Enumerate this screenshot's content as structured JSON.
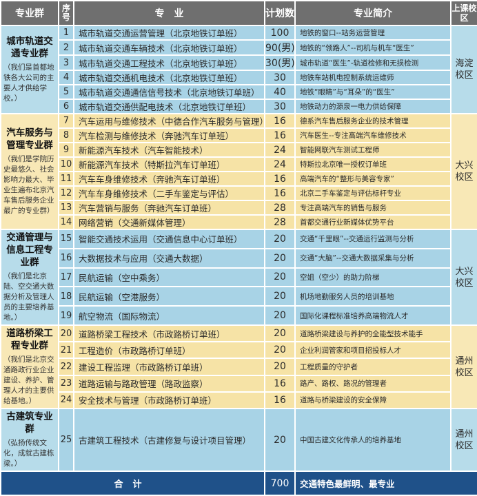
{
  "header": {
    "group": "专业群",
    "seq": "序号",
    "major": "专　业",
    "plan": "计划数",
    "intro": "专业简介",
    "campus": "上课校区"
  },
  "colors": {
    "header": "#6f6f6f",
    "blue": "#a8d3e6",
    "yellow": "#f6e3a6",
    "total": "#1f5189"
  },
  "groups": [
    {
      "title": "城市轨道交通专业群",
      "desc": "（我们是首都地铁各大公司的主要人才供给学校。）",
      "campus": "海淀校区",
      "color": "blue",
      "rowh": 21,
      "rows": [
        {
          "seq": "1",
          "major": "城市轨道交通运营管理（北京地铁订单班）",
          "plan": "100",
          "intro": "地铁的窗口--站务运营管理"
        },
        {
          "seq": "2",
          "major": "城市轨道交通车辆技术（北京地铁订单班）",
          "plan": "90(男)",
          "intro": "地铁的“领路人”--司机与机车“医生”"
        },
        {
          "seq": "3",
          "major": "城市轨道交通工程技术（北京地铁订单班）",
          "plan": "30(男)",
          "intro": "城市轨道“医生”-轨道检修和无损检测"
        },
        {
          "seq": "4",
          "major": "城市轨道交通机电技术（北京地铁订单班）",
          "plan": "30",
          "intro": "地铁车站机电控制系统运维师"
        },
        {
          "seq": "5",
          "major": "城市轨道交通通信信号技术（北京地铁订单班）",
          "plan": "40",
          "intro": "地铁“眼睛”与“耳朵”的“医生”"
        },
        {
          "seq": "6",
          "major": "城市轨道交通供配电技术（北京地铁订单班）",
          "plan": "30",
          "intro": "地铁动力的源泉一电力供给保障"
        }
      ]
    },
    {
      "title": "汽车服务与管理专业群",
      "desc": "（我们是学院历史最悠久、社会影响力最大、毕业生遍布北京汽车售后服务企业最广的专业群）",
      "campus": "大兴校区",
      "color": "yellow",
      "rowh": 21,
      "rows": [
        {
          "seq": "7",
          "major": "汽车运用与维修技术（中德合作汽车服务与管理）",
          "plan": "16",
          "intro": "德系汽车售后服务企业的技术管理"
        },
        {
          "seq": "8",
          "major": "汽车检测与维修技术（奔驰汽车订单班）",
          "plan": "16",
          "intro": "汽车医生--专注高端汽车维修技术"
        },
        {
          "seq": "9",
          "major": "新能源汽车技术（汽车智能技术）",
          "plan": "24",
          "intro": "智能网联汽车测试工程师"
        },
        {
          "seq": "10",
          "major": "新能源汽车技术（特斯拉汽车订单班）",
          "plan": "24",
          "intro": "特斯拉北京唯一授权订单班"
        },
        {
          "seq": "11",
          "major": "汽车车身维修技术（奔驰汽车订单班）",
          "plan": "16",
          "intro": "高端汽车的“整形与美容专家”"
        },
        {
          "seq": "12",
          "major": "汽车车身维修技术（二手车鉴定与评估）",
          "plan": "16",
          "intro": "北京二手车鉴定与评估标杆专业"
        },
        {
          "seq": "13",
          "major": "汽车营销与服务（奔驰汽车订单班）",
          "plan": "28",
          "intro": "专注高端汽车的销售与服务"
        },
        {
          "seq": "14",
          "major": "网络营销（交通新媒体管理）",
          "plan": "28",
          "intro": "首都交通行业新媒体优势平台"
        }
      ]
    },
    {
      "title": "交通管理与信息工程专业群",
      "desc": "（我们是北京陆、空交通大数据分析及管理人员的主要培养基地。）",
      "campus": "大兴校区",
      "color": "blue",
      "rowh": 22,
      "rows": [
        {
          "seq": "15",
          "major": "智能交通技术运用（交通信息中心订单班）",
          "plan": "20",
          "intro": "交通“千里眼”--交通运行监测与分析"
        },
        {
          "seq": "16",
          "major": "大数据技术与应用（交通大数据）",
          "plan": "20",
          "intro": "交通“大脑”--交通大数据采集与分析"
        },
        {
          "seq": "17",
          "major": "民航运输（空中乘务）",
          "plan": "20",
          "intro": "空姐（空少）的助力阶梯"
        },
        {
          "seq": "18",
          "major": "民航运输（空港服务）",
          "plan": "20",
          "intro": "机场地勤服务人员的培训基地"
        },
        {
          "seq": "19",
          "major": "航空物流（国际物流）",
          "plan": "20",
          "intro": "国际化课程标准培养高端物流人才"
        }
      ]
    },
    {
      "title": "道路桥梁工程专业群",
      "desc": "（我们是北京交通路政行业企业建设、养护、管理人才的主要供给基地。）",
      "campus": "通州校区",
      "color": "yellow",
      "rowh": 22,
      "rows": [
        {
          "seq": "20",
          "major": "道路桥梁工程技术（市政路桥订单班）",
          "plan": "20",
          "intro": "道路桥梁建设与养护的全能型技术能手"
        },
        {
          "seq": "21",
          "major": "工程造价（市政路桥订单班）",
          "plan": "20",
          "intro": "企业利润管家和项目招投标人才"
        },
        {
          "seq": "22",
          "major": "建设工程监理（市政路桥订单班）",
          "plan": "20",
          "intro": "工程质量的守护者"
        },
        {
          "seq": "23",
          "major": "道路运输与路政管理（路政监察）",
          "plan": "16",
          "intro": "路产、路权、路况的管理者"
        },
        {
          "seq": "24",
          "major": "安全技术与管理（市政路桥订单班）",
          "plan": "16",
          "intro": "道路与桥梁建设的安全保障"
        }
      ]
    },
    {
      "title": "古建筑专业群",
      "desc": "（弘扬传统文化，成就古建栋梁。）",
      "campus": "通州校区",
      "color": "blue",
      "rowh": 66,
      "rows": [
        {
          "seq": "25",
          "major": "古建筑工程技术（古建修复与设计项目管理）",
          "plan": "20",
          "intro": "中国古建文化传承人的培养基地"
        }
      ]
    }
  ],
  "total": {
    "label": "合计",
    "plan": "700",
    "slogan": "交通特色最鲜明、最专业"
  }
}
